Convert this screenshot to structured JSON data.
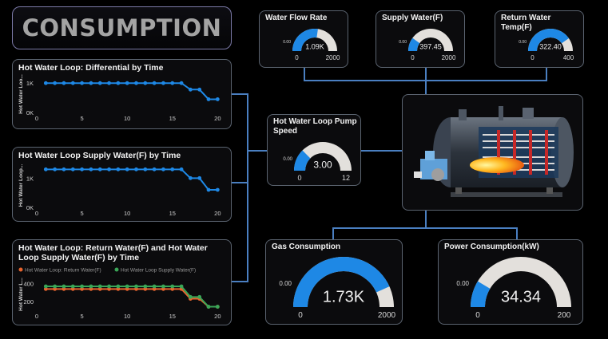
{
  "dashboard": {
    "title": "CONSUMPTION"
  },
  "colors": {
    "accent": "#1e88e5",
    "gauge_track": "#e3e0dc",
    "return_series": "#e8642e",
    "supply_series": "#3aa657",
    "connector": "#4a7fc1"
  },
  "image": {
    "alt": "boiler-cutaway-image"
  },
  "chart_data": [
    {
      "type": "line",
      "title": "Hot Water Loop: Differential by Time",
      "ylabel": "Hot Water Loo...",
      "xticks": [
        0,
        5,
        10,
        15,
        20
      ],
      "yticks": [
        "1K",
        "0K"
      ],
      "yticks_values": [
        1000,
        0
      ],
      "xlim": [
        0,
        20.5
      ],
      "ylim": [
        0,
        1250
      ],
      "series": [
        {
          "color": "#1e88e5",
          "x": [
            1,
            2,
            3,
            4,
            5,
            6,
            7,
            8,
            9,
            10,
            11,
            12,
            13,
            14,
            15,
            16,
            17,
            18,
            19,
            20
          ],
          "values": [
            1000,
            1000,
            1000,
            1000,
            1000,
            1000,
            1000,
            1000,
            1000,
            1000,
            1000,
            1000,
            1000,
            1000,
            1000,
            1000,
            780,
            780,
            450,
            450
          ]
        }
      ]
    },
    {
      "type": "line",
      "title": "Hot Water Loop Supply Water(F) by Time",
      "ylabel": "Hot Water Loop...",
      "xticks": [
        0,
        5,
        10,
        15,
        20
      ],
      "yticks": [
        "1K",
        "0K"
      ],
      "yticks_values": [
        1000,
        0
      ],
      "xlim": [
        0,
        20.5
      ],
      "ylim": [
        0,
        1500
      ],
      "series": [
        {
          "color": "#1e88e5",
          "x": [
            1,
            2,
            3,
            4,
            5,
            6,
            7,
            8,
            9,
            10,
            11,
            12,
            13,
            14,
            15,
            16,
            17,
            18,
            19,
            20
          ],
          "values": [
            1300,
            1300,
            1300,
            1300,
            1300,
            1300,
            1300,
            1300,
            1300,
            1300,
            1300,
            1300,
            1300,
            1300,
            1300,
            1300,
            1000,
            1000,
            600,
            600
          ]
        }
      ]
    },
    {
      "type": "line",
      "title": "Hot Water Loop: Return Water(F) and Hot Water Loop Supply Water(F) by Time",
      "ylabel": "Hot Water L...",
      "xticks": [
        0,
        5,
        10,
        15,
        20
      ],
      "yticks": [
        "400",
        "200"
      ],
      "yticks_values": [
        400,
        200
      ],
      "xlim": [
        0,
        20.5
      ],
      "ylim": [
        100,
        460
      ],
      "legend": "top-left",
      "series": [
        {
          "name": "Hot Water Loop: Return Water(F)",
          "color": "#e8642e",
          "x": [
            1,
            2,
            3,
            4,
            5,
            6,
            7,
            8,
            9,
            10,
            11,
            12,
            13,
            14,
            15,
            16,
            17,
            18,
            19,
            20
          ],
          "values": [
            340,
            340,
            340,
            340,
            340,
            340,
            340,
            340,
            340,
            340,
            340,
            340,
            340,
            340,
            340,
            340,
            230,
            230,
            140,
            140
          ]
        },
        {
          "name": "Hot Water Loop Supply Water(F)",
          "color": "#3aa657",
          "x": [
            1,
            2,
            3,
            4,
            5,
            6,
            7,
            8,
            9,
            10,
            11,
            12,
            13,
            14,
            15,
            16,
            17,
            18,
            19,
            20
          ],
          "values": [
            370,
            370,
            370,
            370,
            370,
            370,
            370,
            370,
            370,
            370,
            370,
            370,
            370,
            370,
            370,
            370,
            250,
            250,
            140,
            140
          ]
        }
      ]
    }
  ],
  "gauges": [
    {
      "id": "water-flow-rate",
      "title": "Water Flow Rate",
      "value": 1090,
      "value_label": "1.09K",
      "min": 0,
      "max": 2000,
      "min_label": "0",
      "max_label": "2000",
      "target_label": "0.00"
    },
    {
      "id": "supply-water",
      "title": "Supply Water(F)",
      "value": 397.45,
      "value_label": "397.45",
      "min": 0,
      "max": 2000,
      "min_label": "0",
      "max_label": "2000",
      "target_label": "0.00"
    },
    {
      "id": "return-water-temp",
      "title": "Return Water Temp(F)",
      "value": 322.4,
      "value_label": "322.40",
      "min": 0,
      "max": 400,
      "min_label": "0",
      "max_label": "400",
      "target_label": "0.00"
    },
    {
      "id": "pump-speed",
      "title": "Hot Water Loop Pump Speed",
      "value": 3,
      "value_label": "3.00",
      "min": 0,
      "max": 12,
      "min_label": "0",
      "max_label": "12",
      "target_label": "0.00"
    },
    {
      "id": "gas-consumption",
      "title": "Gas Consumption",
      "value": 1730,
      "value_label": "1.73K",
      "min": 0,
      "max": 2000,
      "min_label": "0",
      "max_label": "2000",
      "target_label": "0.00"
    },
    {
      "id": "power-consumption",
      "title": "Power Consumption(kW)",
      "value": 34.34,
      "value_label": "34.34",
      "min": 0,
      "max": 200,
      "min_label": "0",
      "max_label": "200",
      "target_label": "0.00"
    }
  ]
}
